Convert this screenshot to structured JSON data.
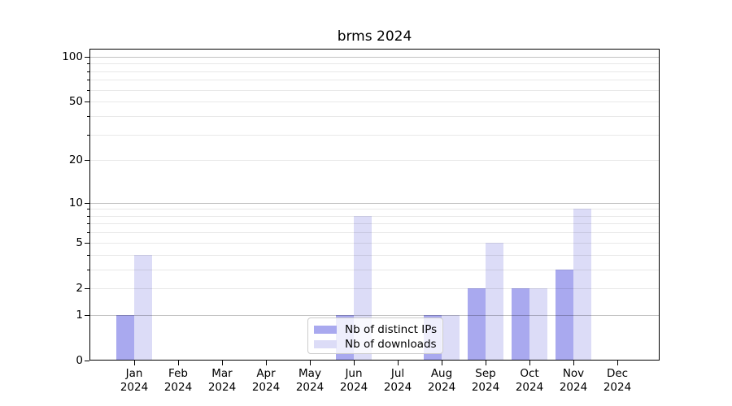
{
  "chart_data": {
    "type": "bar",
    "title": "brms 2024",
    "year": "2024",
    "categories": [
      "Jan",
      "Feb",
      "Mar",
      "Apr",
      "May",
      "Jun",
      "Jul",
      "Aug",
      "Sep",
      "Oct",
      "Nov",
      "Dec"
    ],
    "series": [
      {
        "name": "Nb of distinct IPs",
        "color": "#a9a9ef",
        "values": [
          1,
          0,
          0,
          0,
          0,
          1,
          0,
          1,
          2,
          2,
          3,
          0
        ]
      },
      {
        "name": "Nb of downloads",
        "color": "#dcdcf7",
        "values": [
          4,
          0,
          0,
          0,
          0,
          8,
          0,
          1,
          5,
          2,
          9,
          0
        ]
      }
    ],
    "xlabel": "",
    "ylabel": "",
    "yscale": "log1p",
    "ylim": [
      0,
      113
    ],
    "yticks": [
      0,
      1,
      2,
      5,
      10,
      20,
      50,
      100
    ],
    "major_gridlines": [
      1,
      10,
      100
    ],
    "minor_gridlines": [
      2,
      3,
      4,
      5,
      6,
      7,
      8,
      9,
      20,
      30,
      40,
      50,
      60,
      70,
      80,
      90
    ],
    "grid": true,
    "legend_position": "lower center"
  }
}
